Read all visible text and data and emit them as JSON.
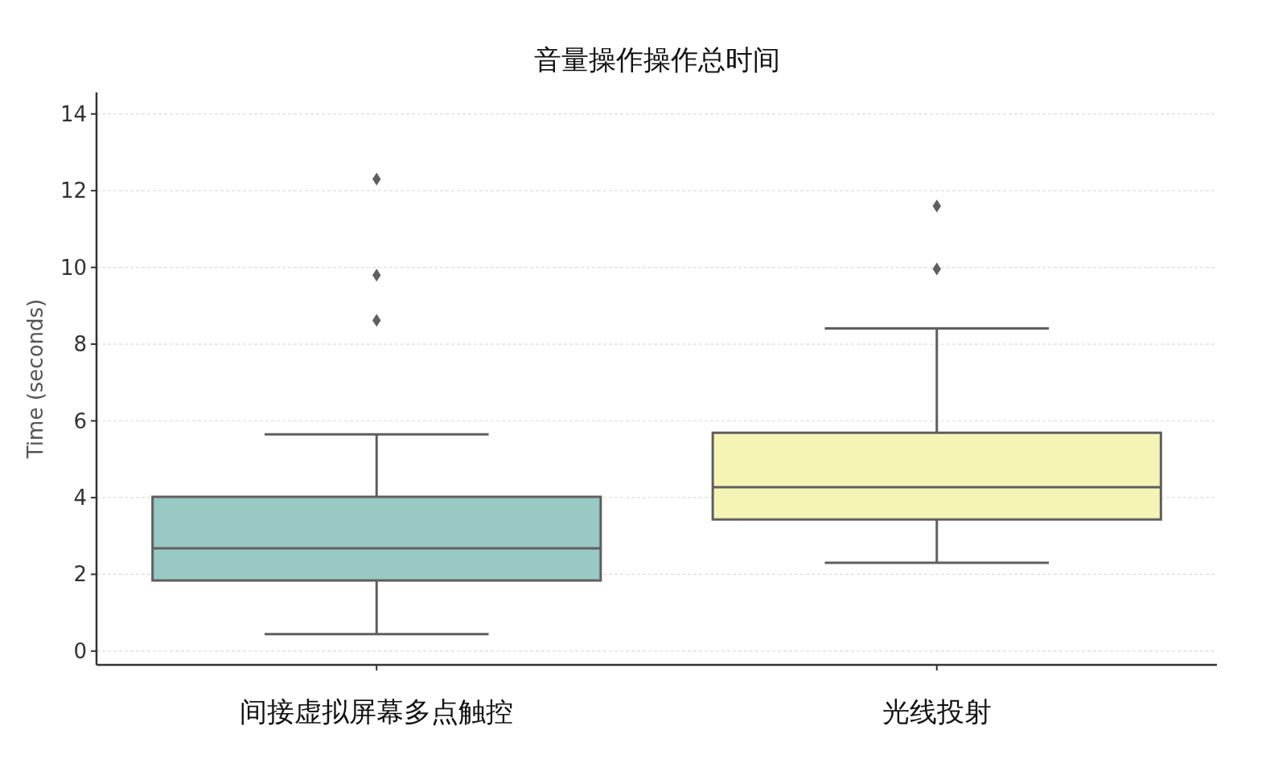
{
  "chart_data": {
    "type": "box",
    "title": "音量操作操作总时间",
    "ylabel": "Time (seconds)",
    "categories": [
      "间接虚拟屏幕多点触控",
      "光线投射"
    ],
    "colors": [
      "#98c9c2",
      "#f4f4b6"
    ],
    "boxes": [
      {
        "low": 0.44,
        "q1": 1.84,
        "median": 2.68,
        "q3": 4.02,
        "high": 5.65,
        "outliers": [
          12.3,
          9.8,
          8.62
        ]
      },
      {
        "low": 2.3,
        "q1": 3.43,
        "median": 4.27,
        "q3": 5.69,
        "high": 8.41,
        "outliers": [
          11.6,
          9.96
        ]
      }
    ],
    "ylim": [
      -0.36,
      14.56
    ],
    "yticks": [
      0,
      2,
      4,
      6,
      8,
      10,
      12,
      14
    ],
    "grid": "y",
    "marker": "diamond"
  }
}
